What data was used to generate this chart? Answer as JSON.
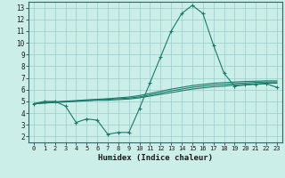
{
  "xlabel": "Humidex (Indice chaleur)",
  "background_color": "#cceee8",
  "grid_color": "#99cccc",
  "line_color": "#1a7a6a",
  "xlim": [
    -0.5,
    23.5
  ],
  "ylim": [
    1.5,
    13.5
  ],
  "xticks": [
    0,
    1,
    2,
    3,
    4,
    5,
    6,
    7,
    8,
    9,
    10,
    11,
    12,
    13,
    14,
    15,
    16,
    17,
    18,
    19,
    20,
    21,
    22,
    23
  ],
  "yticks": [
    2,
    3,
    4,
    5,
    6,
    7,
    8,
    9,
    10,
    11,
    12,
    13
  ],
  "series": [
    {
      "x": [
        0,
        1,
        2,
        3,
        4,
        5,
        6,
        7,
        8,
        9,
        10,
        11,
        12,
        13,
        14,
        15,
        16,
        17,
        18,
        19,
        20,
        21,
        22,
        23
      ],
      "y": [
        4.8,
        5.0,
        5.0,
        4.6,
        3.2,
        3.5,
        3.4,
        2.2,
        2.35,
        2.35,
        4.4,
        6.6,
        8.8,
        11.0,
        12.5,
        13.2,
        12.5,
        9.8,
        7.4,
        6.3,
        6.4,
        6.45,
        6.5,
        6.2
      ]
    },
    {
      "x": [
        0,
        1,
        2,
        3,
        4,
        5,
        6,
        7,
        8,
        9,
        10,
        11,
        12,
        13,
        14,
        15,
        16,
        17,
        18,
        19,
        20,
        21,
        22,
        23
      ],
      "y": [
        4.8,
        4.85,
        4.9,
        4.95,
        5.0,
        5.05,
        5.1,
        5.1,
        5.15,
        5.2,
        5.3,
        5.45,
        5.6,
        5.75,
        5.9,
        6.05,
        6.15,
        6.25,
        6.3,
        6.4,
        6.45,
        6.5,
        6.55,
        6.55
      ]
    },
    {
      "x": [
        0,
        1,
        2,
        3,
        4,
        5,
        6,
        7,
        8,
        9,
        10,
        11,
        12,
        13,
        14,
        15,
        16,
        17,
        18,
        19,
        20,
        21,
        22,
        23
      ],
      "y": [
        4.8,
        4.87,
        4.93,
        4.98,
        5.03,
        5.08,
        5.13,
        5.18,
        5.23,
        5.28,
        5.38,
        5.55,
        5.72,
        5.9,
        6.05,
        6.2,
        6.3,
        6.4,
        6.45,
        6.52,
        6.57,
        6.62,
        6.65,
        6.65
      ]
    },
    {
      "x": [
        0,
        1,
        2,
        3,
        4,
        5,
        6,
        7,
        8,
        9,
        10,
        11,
        12,
        13,
        14,
        15,
        16,
        17,
        18,
        19,
        20,
        21,
        22,
        23
      ],
      "y": [
        4.8,
        4.9,
        4.97,
        5.02,
        5.07,
        5.13,
        5.18,
        5.23,
        5.3,
        5.37,
        5.5,
        5.68,
        5.86,
        6.05,
        6.2,
        6.35,
        6.45,
        6.55,
        6.6,
        6.65,
        6.7,
        6.72,
        6.75,
        6.75
      ]
    }
  ]
}
